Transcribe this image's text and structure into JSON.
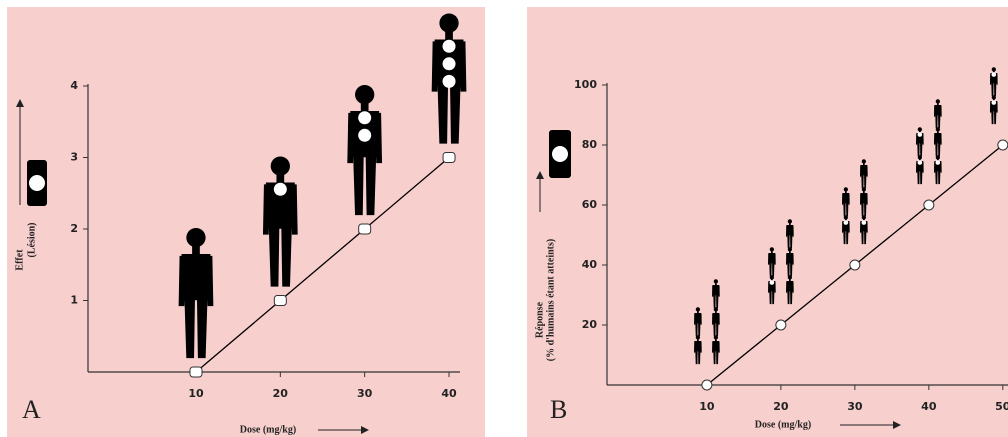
{
  "chart_data": [
    {
      "type": "line",
      "label": "A",
      "xlabel": "Dose (mg/kg)",
      "ylabel": "Effet",
      "ylabel2": "(Lésion)",
      "x": [
        10,
        20,
        30,
        40
      ],
      "values": [
        0,
        1,
        2,
        3
      ],
      "color": "#000000",
      "marker": "square",
      "xlim": [
        -2.8,
        41.3
      ],
      "xticks": [
        10,
        20,
        30,
        40
      ],
      "ylim": [
        0,
        4
      ],
      "yticks": [
        1,
        2,
        3,
        4
      ]
    },
    {
      "type": "line",
      "label": "B",
      "xlabel": "Dose (mg/kg)",
      "ylabel": "Réponse",
      "ylabel2": "(% d'humains étant atteints)",
      "x": [
        10,
        20,
        30,
        40,
        50
      ],
      "values": [
        0,
        20,
        40,
        60,
        80
      ],
      "color": "#000000",
      "marker": "circle",
      "xlim": [
        -3.5,
        50.7
      ],
      "xticks": [
        10,
        20,
        30,
        40,
        50
      ],
      "ylim": [
        0,
        100
      ],
      "yticks": [
        20,
        40,
        60,
        80,
        100
      ]
    }
  ]
}
